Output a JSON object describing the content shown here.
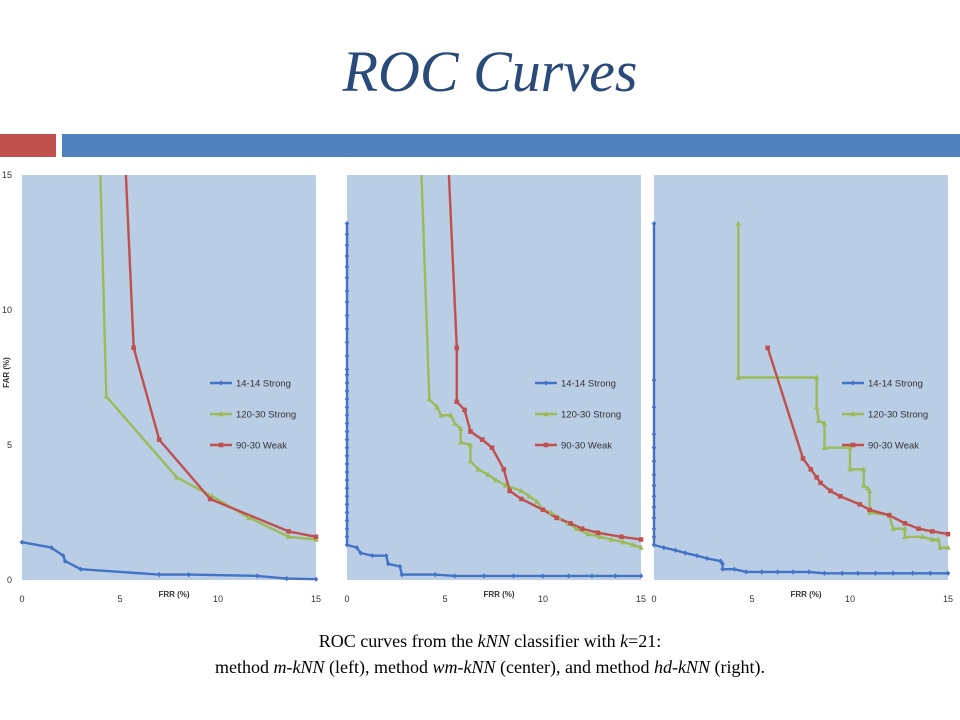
{
  "title": "ROC Curves",
  "caption": {
    "line1": {
      "t1": "ROC curves from the ",
      "i1": "kNN",
      "t2": " classifier with ",
      "i2": "k",
      "t3": "=21:"
    },
    "line2": {
      "t1": "method ",
      "i1": "m-kNN",
      "t2": " (left), method ",
      "i2": "wm-kNN",
      "t3": " (center), and method ",
      "i3": "hd-kNN",
      "t4": " (right)."
    }
  },
  "colors": {
    "plot_bg": "#b9cde5",
    "series": [
      "#4472c4",
      "#9bbb59",
      "#c0504d"
    ],
    "title": "#2a4a7a",
    "accent_red": "#c0504d",
    "accent_blue": "#4f81bd"
  },
  "chart_data": [
    {
      "type": "line",
      "xlabel": "FRR (%)",
      "ylabel": "FAR (%)",
      "xlim": [
        0,
        15
      ],
      "ylim": [
        0,
        15
      ],
      "xticks": [
        "0",
        "5",
        "10",
        "15"
      ],
      "yticks": [
        "0",
        "5",
        "10",
        "15"
      ],
      "legend_position": "right",
      "series": [
        {
          "name": "14-14 Strong",
          "marker": "diamond",
          "points": [
            [
              0,
              1.4
            ],
            [
              1.5,
              1.2
            ],
            [
              2.1,
              0.9
            ],
            [
              2.2,
              0.7
            ],
            [
              3,
              0.4
            ],
            [
              7,
              0.2
            ],
            [
              8.5,
              0.2
            ],
            [
              12,
              0.15
            ],
            [
              13.5,
              0.05
            ],
            [
              15,
              0.03
            ]
          ]
        },
        {
          "name": "120-30 Strong",
          "marker": "triangle",
          "points": [
            [
              4,
              15
            ],
            [
              4.3,
              6.8
            ],
            [
              7.9,
              3.8
            ],
            [
              9.7,
              3.1
            ],
            [
              11.6,
              2.3
            ],
            [
              13.6,
              1.6
            ],
            [
              15,
              1.5
            ]
          ]
        },
        {
          "name": "90-30 Weak",
          "marker": "square",
          "points": [
            [
              5.3,
              15
            ],
            [
              5.7,
              8.6
            ],
            [
              7,
              5.2
            ],
            [
              9.6,
              3
            ],
            [
              13.6,
              1.8
            ],
            [
              15,
              1.6
            ]
          ]
        }
      ]
    },
    {
      "type": "line",
      "xlabel": "FRR (%)",
      "ylabel": "",
      "xlim": [
        0,
        15
      ],
      "ylim": [
        0,
        15
      ],
      "xticks": [
        "0",
        "5",
        "10",
        "15"
      ],
      "yticks": [],
      "legend_position": "right",
      "series": [
        {
          "name": "14-14 Strong",
          "marker": "diamond",
          "points": [
            [
              0,
              13.2
            ],
            [
              0,
              12.8
            ],
            [
              0,
              12.4
            ],
            [
              0,
              12
            ],
            [
              0,
              11.6
            ],
            [
              0,
              11.2
            ],
            [
              0,
              10.7
            ],
            [
              0,
              10.3
            ],
            [
              0,
              9.8
            ],
            [
              0,
              9.3
            ],
            [
              0,
              8.8
            ],
            [
              0,
              8.3
            ],
            [
              0,
              7.8
            ],
            [
              0,
              7.6
            ],
            [
              0,
              7.3
            ],
            [
              0,
              7
            ],
            [
              0,
              6.7
            ],
            [
              0,
              6.4
            ],
            [
              0,
              6.1
            ],
            [
              0,
              5.8
            ],
            [
              0,
              5.5
            ],
            [
              0,
              5.2
            ],
            [
              0,
              4.9
            ],
            [
              0,
              4.6
            ],
            [
              0,
              4.3
            ],
            [
              0,
              4
            ],
            [
              0,
              3.7
            ],
            [
              0,
              3.4
            ],
            [
              0,
              3.1
            ],
            [
              0,
              2.8
            ],
            [
              0,
              2.5
            ],
            [
              0,
              2.2
            ],
            [
              0,
              1.9
            ],
            [
              0,
              1.6
            ],
            [
              0,
              1.3
            ],
            [
              0.5,
              1.2
            ],
            [
              0.7,
              1
            ],
            [
              1.3,
              0.9
            ],
            [
              2,
              0.9
            ],
            [
              2.1,
              0.6
            ],
            [
              2.7,
              0.5
            ],
            [
              2.8,
              0.2
            ],
            [
              4.5,
              0.2
            ],
            [
              5.5,
              0.15
            ],
            [
              7,
              0.15
            ],
            [
              8.5,
              0.15
            ],
            [
              10,
              0.15
            ],
            [
              11.3,
              0.15
            ],
            [
              12.5,
              0.15
            ],
            [
              13.7,
              0.15
            ],
            [
              15,
              0.15
            ]
          ]
        },
        {
          "name": "120-30 Strong",
          "marker": "triangle",
          "points": [
            [
              3.8,
              15
            ],
            [
              4.2,
              6.7
            ],
            [
              4.6,
              6.4
            ],
            [
              4.8,
              6.1
            ],
            [
              5.3,
              6.1
            ],
            [
              5.5,
              5.8
            ],
            [
              5.8,
              5.6
            ],
            [
              5.8,
              5.1
            ],
            [
              6.3,
              5
            ],
            [
              6.3,
              4.4
            ],
            [
              6.7,
              4.1
            ],
            [
              7.2,
              3.9
            ],
            [
              7.6,
              3.7
            ],
            [
              8.1,
              3.5
            ],
            [
              8.9,
              3.3
            ],
            [
              9.3,
              3.1
            ],
            [
              9.7,
              2.9
            ],
            [
              10,
              2.6
            ],
            [
              10.4,
              2.5
            ],
            [
              10.8,
              2.3
            ],
            [
              11.3,
              2.1
            ],
            [
              11.7,
              1.9
            ],
            [
              12.3,
              1.7
            ],
            [
              12.9,
              1.6
            ],
            [
              13.5,
              1.5
            ],
            [
              14.1,
              1.4
            ],
            [
              14.6,
              1.3
            ],
            [
              15,
              1.2
            ]
          ]
        },
        {
          "name": "90-30 Weak",
          "marker": "square",
          "points": [
            [
              5.2,
              15
            ],
            [
              5.6,
              8.6
            ],
            [
              5.6,
              6.6
            ],
            [
              6,
              6.3
            ],
            [
              6.3,
              5.5
            ],
            [
              6.9,
              5.2
            ],
            [
              7.4,
              4.9
            ],
            [
              8,
              4.1
            ],
            [
              8.3,
              3.3
            ],
            [
              8.9,
              3
            ],
            [
              10,
              2.6
            ],
            [
              10.7,
              2.3
            ],
            [
              11.4,
              2.1
            ],
            [
              12,
              1.9
            ],
            [
              12.8,
              1.75
            ],
            [
              14,
              1.6
            ],
            [
              15,
              1.5
            ]
          ]
        }
      ]
    },
    {
      "type": "line",
      "xlabel": "FRR (%)",
      "ylabel": "",
      "xlim": [
        0,
        15
      ],
      "ylim": [
        0,
        15
      ],
      "xticks": [
        "0",
        "5",
        "10",
        "15"
      ],
      "yticks": [],
      "legend_position": "right",
      "series": [
        {
          "name": "14-14 Strong",
          "marker": "diamond",
          "points": [
            [
              0,
              13.2
            ],
            [
              0,
              7.4
            ],
            [
              0,
              6.4
            ],
            [
              0,
              5.4
            ],
            [
              0,
              4.9
            ],
            [
              0,
              4.4
            ],
            [
              0,
              3.9
            ],
            [
              0,
              3.5
            ],
            [
              0,
              3.1
            ],
            [
              0,
              2.7
            ],
            [
              0,
              2.3
            ],
            [
              0,
              1.9
            ],
            [
              0,
              1.6
            ],
            [
              0,
              1.3
            ],
            [
              0.5,
              1.2
            ],
            [
              1.1,
              1.1
            ],
            [
              1.6,
              1
            ],
            [
              2.2,
              0.9
            ],
            [
              2.7,
              0.8
            ],
            [
              3.4,
              0.7
            ],
            [
              3.5,
              0.6
            ],
            [
              3.5,
              0.4
            ],
            [
              4.1,
              0.4
            ],
            [
              4.7,
              0.3
            ],
            [
              5.5,
              0.3
            ],
            [
              6.3,
              0.3
            ],
            [
              7.1,
              0.3
            ],
            [
              7.9,
              0.3
            ],
            [
              8.7,
              0.25
            ],
            [
              9.6,
              0.25
            ],
            [
              10.4,
              0.25
            ],
            [
              11.3,
              0.25
            ],
            [
              12.2,
              0.25
            ],
            [
              13.2,
              0.25
            ],
            [
              14.1,
              0.25
            ],
            [
              15,
              0.25
            ]
          ]
        },
        {
          "name": "120-30 Strong",
          "marker": "triangle",
          "points": [
            [
              4.3,
              13.2
            ],
            [
              4.3,
              7.5
            ],
            [
              8.3,
              7.5
            ],
            [
              8.3,
              6.4
            ],
            [
              8.4,
              5.9
            ],
            [
              8.7,
              5.8
            ],
            [
              8.7,
              4.9
            ],
            [
              10,
              4.9
            ],
            [
              10,
              4.1
            ],
            [
              10.7,
              4.1
            ],
            [
              10.7,
              3.5
            ],
            [
              10.9,
              3.4
            ],
            [
              11,
              3.3
            ],
            [
              11,
              2.5
            ],
            [
              12,
              2.4
            ],
            [
              12.2,
              1.9
            ],
            [
              12.8,
              1.9
            ],
            [
              12.8,
              1.6
            ],
            [
              13.7,
              1.6
            ],
            [
              14.2,
              1.5
            ],
            [
              14.5,
              1.5
            ],
            [
              14.6,
              1.2
            ],
            [
              15,
              1.2
            ]
          ]
        },
        {
          "name": "90-30 Weak",
          "marker": "square",
          "points": [
            [
              5.8,
              8.6
            ],
            [
              7.6,
              4.5
            ],
            [
              8,
              4.1
            ],
            [
              8.3,
              3.8
            ],
            [
              8.5,
              3.6
            ],
            [
              9,
              3.3
            ],
            [
              9.5,
              3.1
            ],
            [
              10.5,
              2.8
            ],
            [
              11,
              2.6
            ],
            [
              12,
              2.4
            ],
            [
              12.8,
              2.1
            ],
            [
              13.5,
              1.9
            ],
            [
              14.2,
              1.8
            ],
            [
              15,
              1.7
            ]
          ]
        }
      ]
    }
  ]
}
